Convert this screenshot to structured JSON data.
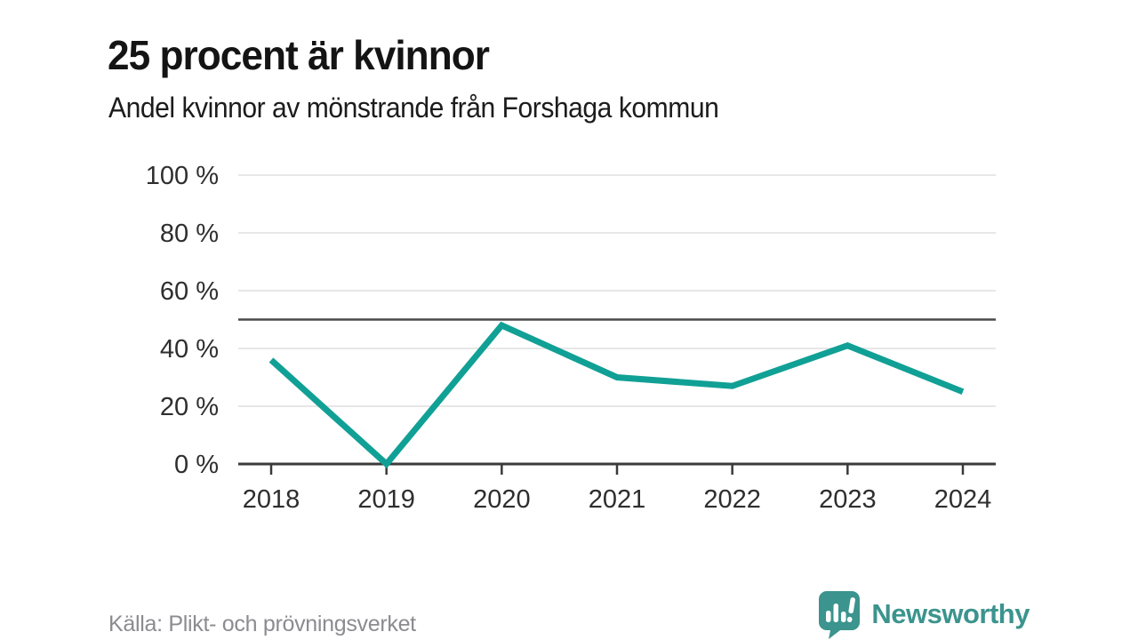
{
  "header": {
    "title": "25 procent är kvinnor",
    "subtitle": "Andel kvinnor av mönstrande från Forshaga kommun"
  },
  "chart_data": {
    "type": "line",
    "title": "25 procent är kvinnor",
    "subtitle": "Andel kvinnor av mönstrande från Forshaga kommun",
    "categories": [
      "2018",
      "2019",
      "2020",
      "2021",
      "2022",
      "2023",
      "2024"
    ],
    "values": [
      36,
      0,
      48,
      30,
      27,
      41,
      25
    ],
    "series_name": "Andel kvinnor av mönstrande",
    "ylim": [
      0,
      100
    ],
    "yticks": [
      0,
      20,
      40,
      60,
      80,
      100
    ],
    "ytick_suffix": " %",
    "reference_line": 50,
    "grid": true,
    "legend": "none",
    "colors": {
      "line": "#11a095",
      "reference_line": "#4a4a4a",
      "gridline": "#e7e7e7",
      "axis": "#3a3a3a",
      "tick_label": "#2e2e2e"
    }
  },
  "footer": {
    "source": "Källa: Plikt- och prövningsverket",
    "brand": "Newsworthy",
    "brand_color": "#3b948d",
    "logo_icon": "bar-chart-speech-bubble"
  }
}
